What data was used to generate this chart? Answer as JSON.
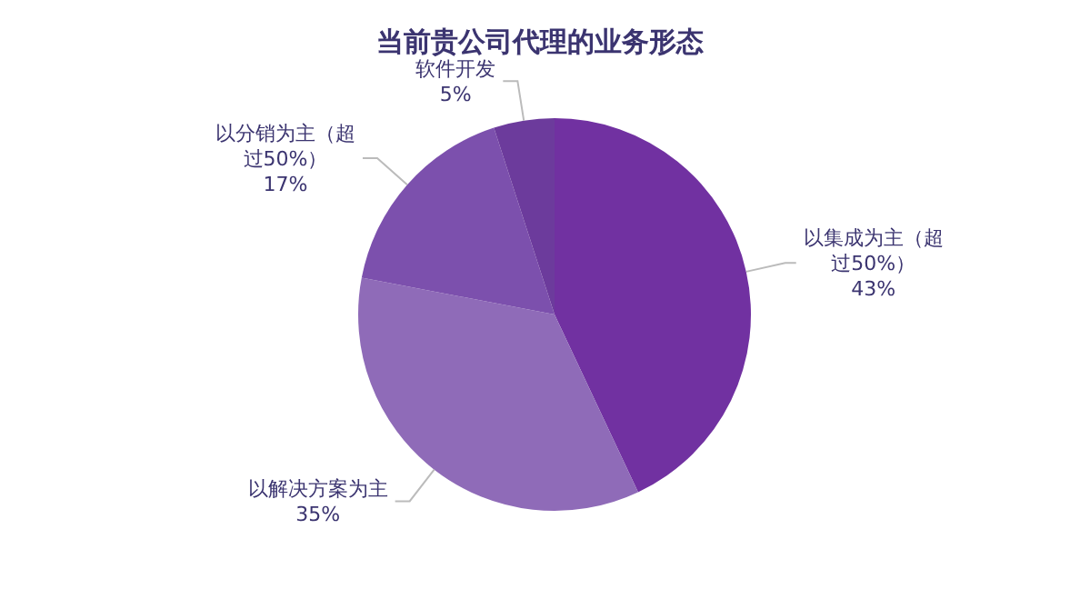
{
  "chart_data": {
    "type": "pie",
    "title": "当前贵公司代理的业务形态",
    "categories": [
      "以集成为主（超过50%）",
      "以解决方案为主",
      "以分销为主（超过50%）",
      "软件开发"
    ],
    "values": [
      43,
      35,
      17,
      5
    ],
    "colors": [
      "#7131a1",
      "#8f6bb8",
      "#7c50ad",
      "#6c3b9c"
    ],
    "value_labels": [
      "43%",
      "35%",
      "17%",
      "5%"
    ],
    "legend": false
  }
}
